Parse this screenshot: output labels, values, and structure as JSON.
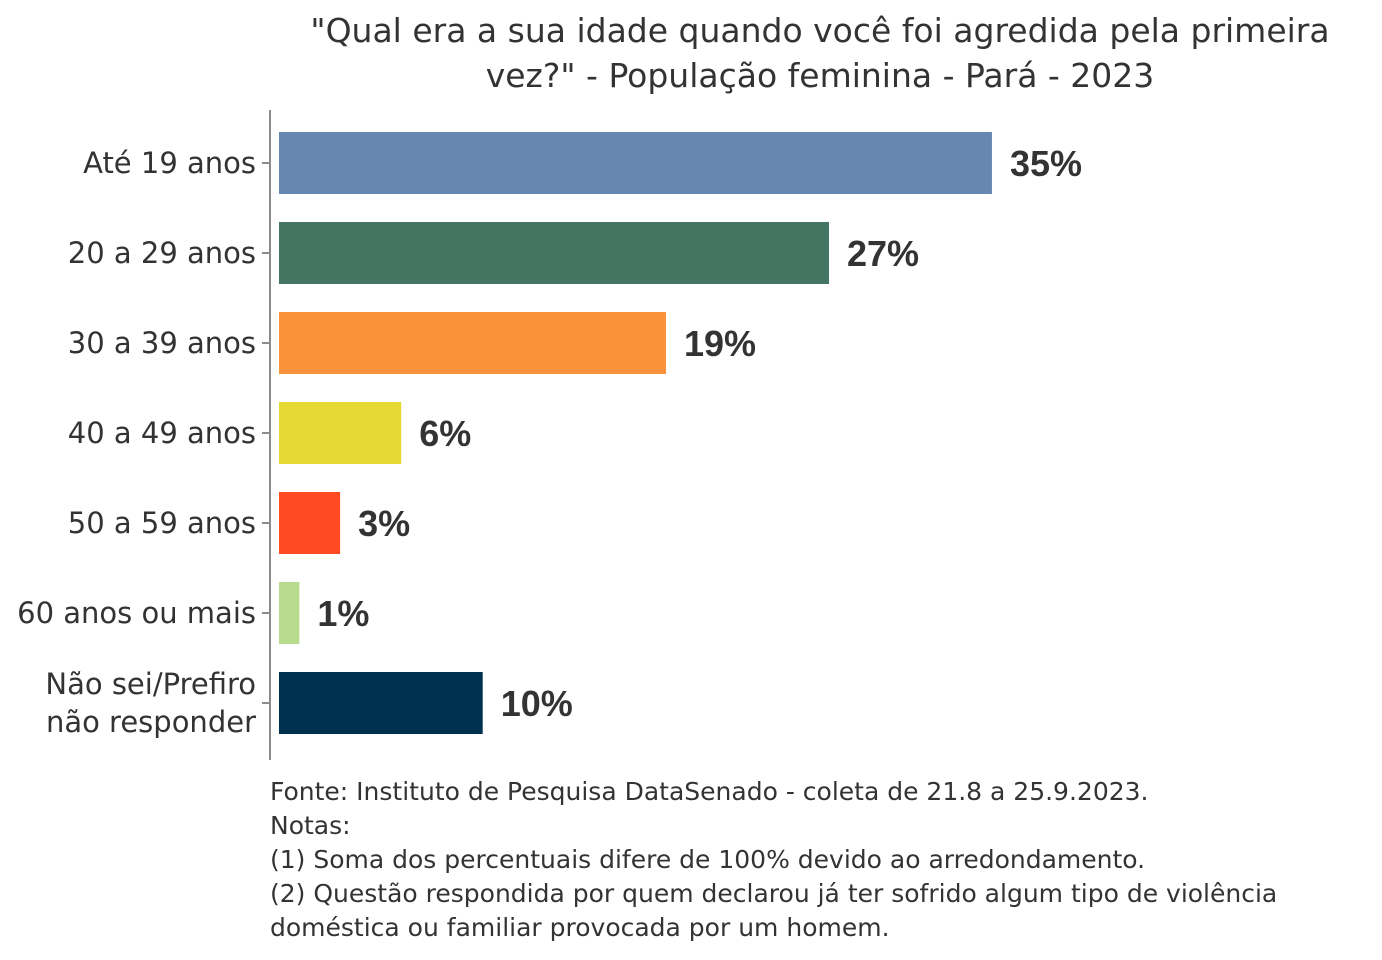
{
  "chart_data": {
    "type": "bar",
    "orientation": "horizontal",
    "title": "\"Qual era a sua idade quando você foi agredida pela primeira vez?\" - População feminina - Pará - 2023",
    "title_lines": [
      "\"Qual era a sua idade quando você foi agredida pela primeira",
      "vez?\" - População feminina - Pará - 2023"
    ],
    "categories": [
      "Até 19 anos",
      "20 a 29 anos",
      "30 a 39 anos",
      "40 a 49 anos",
      "50 a 59 anos",
      "60 anos ou mais",
      "Não sei/Prefiro não responder"
    ],
    "category_lines": [
      [
        "Até 19 anos"
      ],
      [
        "20 a 29 anos"
      ],
      [
        "30 a 39 anos"
      ],
      [
        "40 a 49 anos"
      ],
      [
        "50 a 59 anos"
      ],
      [
        "60 anos ou mais"
      ],
      [
        "Não sei/Prefiro",
        "não responder"
      ]
    ],
    "values": [
      35,
      27,
      19,
      6,
      3,
      1,
      10
    ],
    "labels": [
      "35%",
      "27%",
      "19%",
      "6%",
      "3%",
      "1%",
      "10%"
    ],
    "colors": [
      "#6688B0",
      "#447562",
      "#FA923C",
      "#E5D833",
      "#FF4A22",
      "#B8DC8E",
      "#00304F"
    ],
    "xlim": [
      0,
      40
    ],
    "xlabel": "",
    "ylabel": "",
    "grid": false,
    "legend": "none",
    "unit": "%"
  },
  "source": {
    "lines": [
      "Fonte: Instituto de Pesquisa DataSenado - coleta de 21.8 a 25.9.2023.",
      "Notas:",
      "(1) Soma dos percentuais difere de 100% devido ao arredondamento.",
      "(2) Questão respondida por quem declarou já ter sofrido algum tipo de violência",
      "doméstica ou familiar provocada por um homem."
    ]
  }
}
